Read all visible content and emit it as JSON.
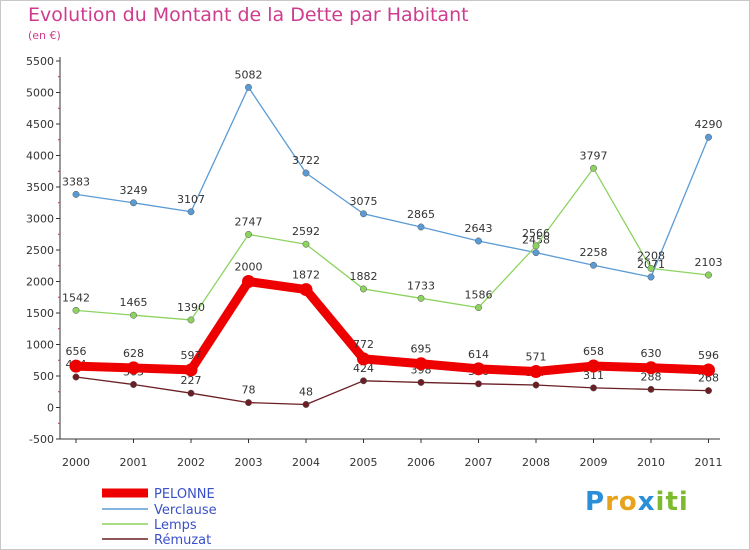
{
  "header": {
    "title": "Evolution du Montant de la Dette par Habitant",
    "unit": "(en €)"
  },
  "logo": {
    "text": "Proxiti",
    "letters": [
      "P",
      "r",
      "o",
      "x",
      "i",
      "t",
      "i"
    ],
    "colors": [
      "#2a8fd8",
      "#e8a21c",
      "#e8a21c",
      "#2a8fd8",
      "#7dbb2e",
      "#7dbb2e",
      "#7dbb2e"
    ]
  },
  "chart_data": {
    "type": "line",
    "title": "Evolution du Montant de la Dette par Habitant",
    "ylabel": "(en €)",
    "xlabel": "",
    "ylim": [
      -500,
      5500
    ],
    "yticks": [
      -500,
      0,
      500,
      1000,
      1500,
      2000,
      2500,
      3000,
      3500,
      4000,
      4500,
      5000,
      5500
    ],
    "ytick_labels": [
      "-500",
      "0",
      "500",
      "1000",
      "1500",
      "2000",
      "2500",
      "3000",
      "3500",
      "4000",
      "4500",
      "5000",
      "5500"
    ],
    "categories": [
      "2000",
      "2001",
      "2002",
      "2003",
      "2004",
      "2005",
      "2006",
      "2007",
      "2008",
      "2009",
      "2010",
      "2011"
    ],
    "grid": false,
    "legend_position": "bottom-left",
    "series": [
      {
        "name": "PELONNE",
        "color": "#ee0000",
        "values": [
          656,
          628,
          597,
          2000,
          1872,
          772,
          695,
          614,
          571,
          658,
          630,
          596
        ],
        "labels": [
          "656",
          "628",
          "597",
          "2000",
          "1872",
          "772",
          "695",
          "614",
          "571",
          "658",
          "630",
          "596"
        ]
      },
      {
        "name": "Verclause",
        "color": "#5b9bd5",
        "values": [
          3383,
          3249,
          3107,
          5082,
          3722,
          3075,
          2865,
          2643,
          2458,
          2258,
          2071,
          4290
        ],
        "labels": [
          "3383",
          "3249",
          "3107",
          "5082",
          "3722",
          "3075",
          "2865",
          "2643",
          "2458",
          "2258",
          "2071",
          "4290"
        ]
      },
      {
        "name": "Lemps",
        "color": "#8dd35f",
        "values": [
          1542,
          1465,
          1390,
          2747,
          2592,
          1882,
          1733,
          1586,
          2566,
          3797,
          2208,
          2103
        ],
        "labels": [
          "1542",
          "1465",
          "1390",
          "2747",
          "2592",
          "1882",
          "1733",
          "1586",
          "2566",
          "3797",
          "2208",
          "2103"
        ]
      },
      {
        "name": "Rémuzat",
        "color": "#6b1e24",
        "values": [
          484,
          365,
          227,
          78,
          48,
          424,
          398,
          376,
          357,
          311,
          288,
          268
        ],
        "labels": [
          "484",
          "365",
          "227",
          "78",
          "48",
          "424",
          "398",
          "376",
          "357",
          "311",
          "288",
          "268"
        ]
      }
    ]
  }
}
